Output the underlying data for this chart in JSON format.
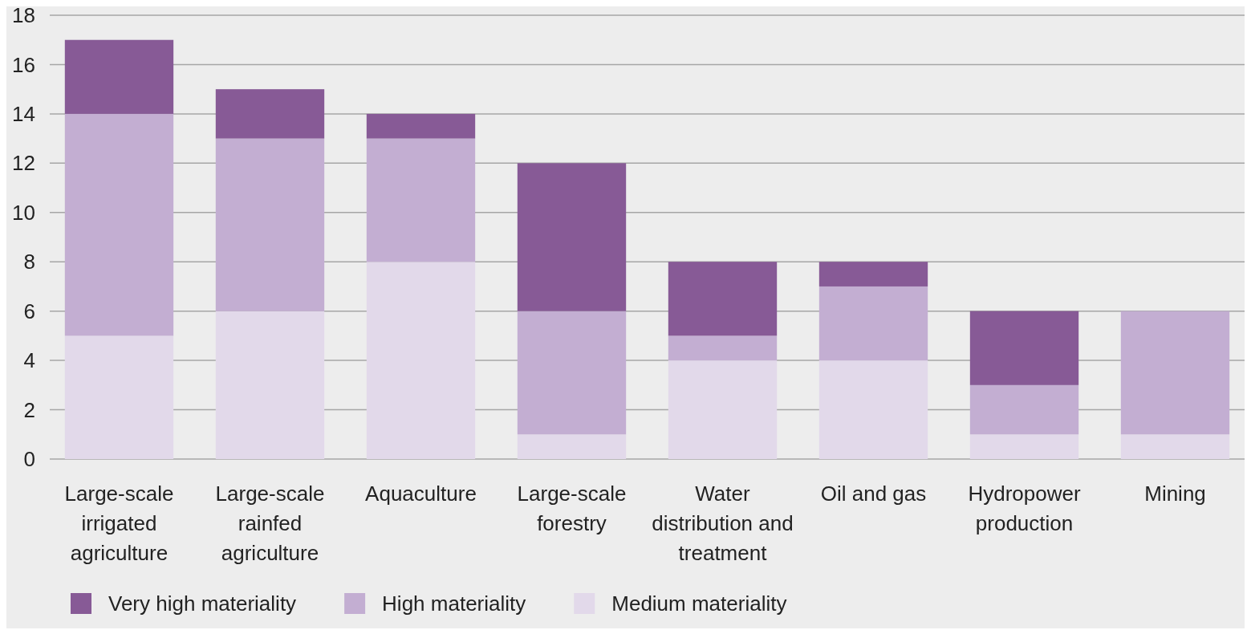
{
  "chart_data": {
    "type": "bar",
    "stacked": true,
    "categories": [
      "Large-scale irrigated agriculture",
      "Large-scale rainfed agriculture",
      "Aquaculture",
      "Large-scale forestry",
      "Water distribution and treatment",
      "Oil and gas",
      "Hydropower production",
      "Mining"
    ],
    "series": [
      {
        "name": "Medium materiality",
        "color": "#e2d9ea",
        "values": [
          5,
          6,
          8,
          1,
          4,
          4,
          1,
          1
        ]
      },
      {
        "name": "High materiality",
        "color": "#c3aed2",
        "values": [
          9,
          7,
          5,
          5,
          1,
          3,
          2,
          5
        ]
      },
      {
        "name": "Very high materiality",
        "color": "#875a96",
        "values": [
          3,
          2,
          1,
          6,
          3,
          1,
          3,
          0
        ]
      }
    ],
    "ylim": [
      0,
      18
    ],
    "yticks": [
      0,
      2,
      4,
      6,
      8,
      10,
      12,
      14,
      16,
      18
    ],
    "grid": "y",
    "legend": "bottom"
  }
}
